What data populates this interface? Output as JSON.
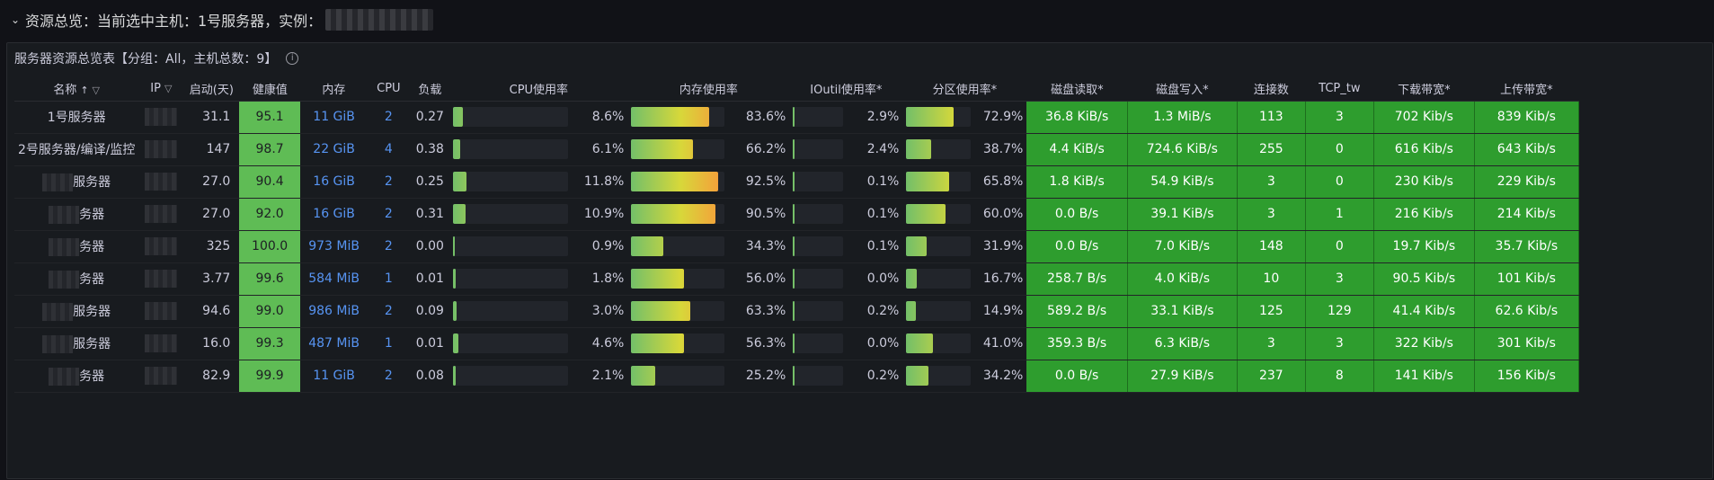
{
  "row_header": {
    "chevron": "⌄",
    "title": "资源总览：当前选中主机：1号服务器，实例："
  },
  "panel": {
    "title": "服务器资源总览表【分组：All，主机总数：9】",
    "info_icon": "info-icon"
  },
  "columns": [
    {
      "key": "name",
      "label": "名称",
      "sort": "↑",
      "filter": true
    },
    {
      "key": "ip",
      "label": "IP",
      "filter": true
    },
    {
      "key": "uptime",
      "label": "启动(天)"
    },
    {
      "key": "health",
      "label": "健康值"
    },
    {
      "key": "mem",
      "label": "内存"
    },
    {
      "key": "cpu",
      "label": "CPU"
    },
    {
      "key": "load",
      "label": "负载"
    },
    {
      "key": "cpu_pct",
      "label": "CPU使用率"
    },
    {
      "key": "mem_pct",
      "label": "内存使用率"
    },
    {
      "key": "io_pct",
      "label": "IOutil使用率*"
    },
    {
      "key": "part_pct",
      "label": "分区使用率*"
    },
    {
      "key": "disk_read",
      "label": "磁盘读取*"
    },
    {
      "key": "disk_write",
      "label": "磁盘写入*"
    },
    {
      "key": "conns",
      "label": "连接数"
    },
    {
      "key": "tcp_tw",
      "label": "TCP_tw"
    },
    {
      "key": "down",
      "label": "下载带宽*"
    },
    {
      "key": "up",
      "label": "上传带宽*"
    }
  ],
  "colors": {
    "health_bg": "#5fbc55",
    "rate_bg": "#2e9d2e",
    "link": "#5794f2"
  },
  "rows": [
    {
      "name": "1号服务器",
      "uptime": "31.1",
      "health": "95.1",
      "mem": "11 GiB",
      "cpu": "2",
      "load": "0.27",
      "cpu_pct": 8.6,
      "mem_pct": 83.6,
      "io_pct": 2.9,
      "part_pct": 72.9,
      "disk_read": "36.8 KiB/s",
      "disk_write": "1.3 MiB/s",
      "conns": "113",
      "tcp_tw": "3",
      "down": "702 Kib/s",
      "up": "839 Kib/s"
    },
    {
      "name": "2号服务器/编译/监控",
      "uptime": "147",
      "health": "98.7",
      "mem": "22 GiB",
      "cpu": "4",
      "load": "0.38",
      "cpu_pct": 6.1,
      "mem_pct": 66.2,
      "io_pct": 2.4,
      "part_pct": 38.7,
      "disk_read": "4.4 KiB/s",
      "disk_write": "724.6 KiB/s",
      "conns": "255",
      "tcp_tw": "0",
      "down": "616 Kib/s",
      "up": "643 Kib/s"
    },
    {
      "name": "服务器",
      "uptime": "27.0",
      "health": "90.4",
      "mem": "16 GiB",
      "cpu": "2",
      "load": "0.25",
      "cpu_pct": 11.8,
      "mem_pct": 92.5,
      "io_pct": 0.1,
      "part_pct": 65.8,
      "disk_read": "1.8 KiB/s",
      "disk_write": "54.9 KiB/s",
      "conns": "3",
      "tcp_tw": "0",
      "down": "230 Kib/s",
      "up": "229 Kib/s"
    },
    {
      "name": "务器",
      "uptime": "27.0",
      "health": "92.0",
      "mem": "16 GiB",
      "cpu": "2",
      "load": "0.31",
      "cpu_pct": 10.9,
      "mem_pct": 90.5,
      "io_pct": 0.1,
      "part_pct": 60.0,
      "disk_read": "0.0 B/s",
      "disk_write": "39.1 KiB/s",
      "conns": "3",
      "tcp_tw": "1",
      "down": "216 Kib/s",
      "up": "214 Kib/s"
    },
    {
      "name": "务器",
      "uptime": "325",
      "health": "100.0",
      "mem": "973 MiB",
      "cpu": "2",
      "load": "0.00",
      "cpu_pct": 0.9,
      "mem_pct": 34.3,
      "io_pct": 0.1,
      "part_pct": 31.9,
      "disk_read": "0.0 B/s",
      "disk_write": "7.0 KiB/s",
      "conns": "148",
      "tcp_tw": "0",
      "down": "19.7 Kib/s",
      "up": "35.7 Kib/s"
    },
    {
      "name": "务器",
      "uptime": "3.77",
      "health": "99.6",
      "mem": "584 MiB",
      "cpu": "1",
      "load": "0.01",
      "cpu_pct": 1.8,
      "mem_pct": 56.0,
      "io_pct": 0.0,
      "part_pct": 16.7,
      "disk_read": "258.7 B/s",
      "disk_write": "4.0 KiB/s",
      "conns": "10",
      "tcp_tw": "3",
      "down": "90.5 Kib/s",
      "up": "101 Kib/s"
    },
    {
      "name": "服务器",
      "uptime": "94.6",
      "health": "99.0",
      "mem": "986 MiB",
      "cpu": "2",
      "load": "0.09",
      "cpu_pct": 3.0,
      "mem_pct": 63.3,
      "io_pct": 0.2,
      "part_pct": 14.9,
      "disk_read": "589.2 B/s",
      "disk_write": "33.1 KiB/s",
      "conns": "125",
      "tcp_tw": "129",
      "down": "41.4 Kib/s",
      "up": "62.6 Kib/s"
    },
    {
      "name": "服务器",
      "uptime": "16.0",
      "health": "99.3",
      "mem": "487 MiB",
      "cpu": "1",
      "load": "0.01",
      "cpu_pct": 4.6,
      "mem_pct": 56.3,
      "io_pct": 0.0,
      "part_pct": 41.0,
      "disk_read": "359.3 B/s",
      "disk_write": "6.3 KiB/s",
      "conns": "3",
      "tcp_tw": "3",
      "down": "322 Kib/s",
      "up": "301 Kib/s"
    },
    {
      "name": "务器",
      "uptime": "82.9",
      "health": "99.9",
      "mem": "11 GiB",
      "cpu": "2",
      "load": "0.08",
      "cpu_pct": 2.1,
      "mem_pct": 25.2,
      "io_pct": 0.2,
      "part_pct": 34.2,
      "disk_read": "0.0 B/s",
      "disk_write": "27.9 KiB/s",
      "conns": "237",
      "tcp_tw": "8",
      "down": "141 Kib/s",
      "up": "156 Kib/s"
    }
  ]
}
